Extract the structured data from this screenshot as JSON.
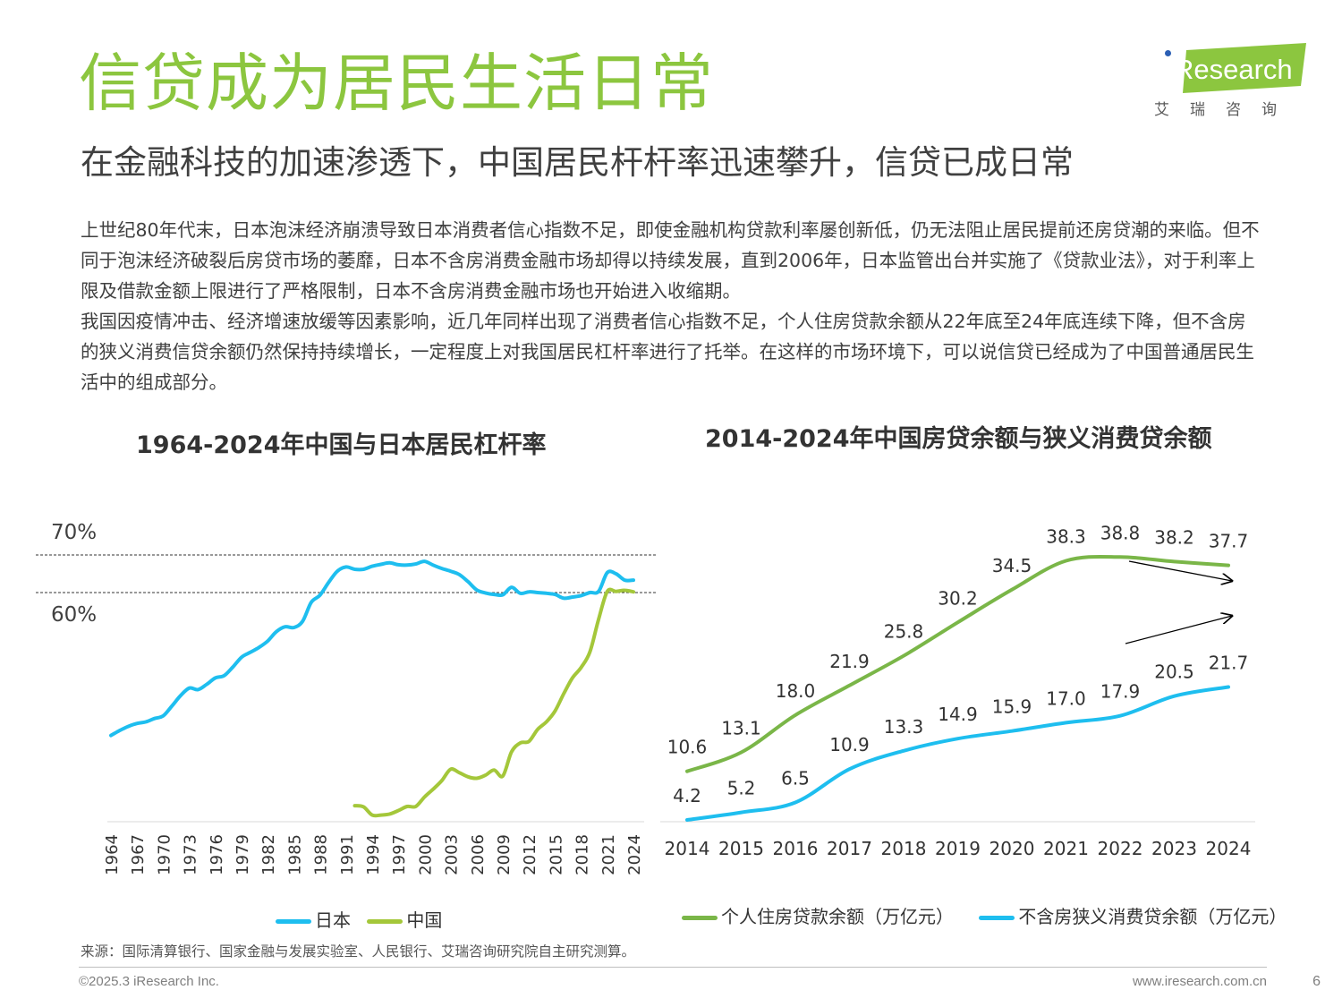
{
  "header": {
    "title": "信贷成为居民生活日常",
    "subtitle": "在金融科技的加速渗透下，中国居民杆杆率迅速攀升，信贷已成日常"
  },
  "logo": {
    "brand_i": "i",
    "brand_text": "Research",
    "sub": "艾瑞咨询",
    "color": "#8cc63f"
  },
  "body": {
    "paragraph1": "上世纪80年代末，日本泡沫经济崩溃导致日本消费者信心指数不足，即使金融机构贷款利率屡创新低，仍无法阻止居民提前还房贷潮的来临。但不同于泡沫经济破裂后房贷市场的萎靡，日本不含房消费金融市场却得以持续发展，直到2006年，日本监管出台并实施了《贷款业法》，对于利率上限及借款金额上限进行了严格限制，日本不含房消费金融市场也开始进入收缩期。",
    "paragraph2": "我国因疫情冲击、经济增速放缓等因素影响，近几年同样出现了消费者信心指数不足，个人住房贷款余额从22年底至24年底连续下降，但不含房的狭义消费信贷余额仍然保持持续增长，一定程度上对我国居民杠杆率进行了托举。在这样的市场环境下，可以说信贷已经成为了中国普通居民生活中的组成部分。"
  },
  "chart_data": [
    {
      "type": "line",
      "title": "1964-2024年中国与日本居民杠杆率",
      "x_tick_labels": [
        "1964",
        "1967",
        "1970",
        "1973",
        "1976",
        "1979",
        "1982",
        "1985",
        "1988",
        "1991",
        "1994",
        "1997",
        "2000",
        "2003",
        "2006",
        "2009",
        "2012",
        "2015",
        "2018",
        "2021",
        "2024"
      ],
      "y_reference_lines": [
        {
          "value": 70,
          "label": "70%"
        },
        {
          "value": 60,
          "label": "60%"
        }
      ],
      "ylim": [
        0,
        75
      ],
      "series": [
        {
          "name": "日本",
          "color": "#1ebeef",
          "x": [
            1964,
            1965,
            1966,
            1967,
            1968,
            1969,
            1970,
            1971,
            1972,
            1973,
            1974,
            1975,
            1976,
            1977,
            1978,
            1979,
            1980,
            1981,
            1982,
            1983,
            1984,
            1985,
            1986,
            1987,
            1988,
            1989,
            1990,
            1991,
            1992,
            1993,
            1994,
            1995,
            1996,
            1997,
            1998,
            1999,
            2000,
            2001,
            2002,
            2003,
            2004,
            2005,
            2006,
            2007,
            2008,
            2009,
            2010,
            2011,
            2012,
            2013,
            2014,
            2015,
            2016,
            2017,
            2018,
            2019,
            2020,
            2021,
            2022,
            2023,
            2024
          ],
          "y": [
            22,
            23.3,
            24.4,
            25.2,
            25.6,
            26.5,
            27.2,
            29.8,
            32.6,
            34.6,
            34.2,
            35.6,
            37.3,
            37.9,
            40.2,
            42.8,
            44.1,
            45.4,
            47.1,
            49.6,
            50.9,
            50.7,
            52.3,
            57.4,
            59.3,
            62.7,
            65.7,
            66.8,
            66.2,
            66.2,
            67.0,
            67.5,
            67.9,
            67.4,
            67.3,
            67.6,
            68.3,
            67.3,
            66.4,
            65.7,
            64.8,
            62.9,
            60.7,
            59.9,
            59.5,
            59.4,
            61.4,
            59.8,
            60.2,
            60.0,
            59.8,
            59.5,
            58.5,
            58.8,
            59.2,
            60.0,
            60.3,
            65.3,
            65.0,
            63.3,
            63.3
          ]
        },
        {
          "name": "中国",
          "color": "#a4c73a",
          "x": [
            1992,
            1993,
            1994,
            1995,
            1996,
            1997,
            1998,
            1999,
            2000,
            2001,
            2002,
            2003,
            2004,
            2005,
            2006,
            2007,
            2008,
            2009,
            2010,
            2011,
            2012,
            2013,
            2014,
            2015,
            2016,
            2017,
            2018,
            2019,
            2020,
            2021,
            2022,
            2023,
            2024
          ],
          "y": [
            3.3,
            3.0,
            0.8,
            0.8,
            1.1,
            2.0,
            3.1,
            3.1,
            5.6,
            7.7,
            10.0,
            13.0,
            12.1,
            11.0,
            10.6,
            11.4,
            12.8,
            11.2,
            17.6,
            20.0,
            20.4,
            23.6,
            25.6,
            28.5,
            33.1,
            37.3,
            40.1,
            44.2,
            52.9,
            60.3,
            60.3,
            60.6,
            60.2
          ]
        }
      ],
      "legend": [
        "日本",
        "中国"
      ],
      "legend_position": "bottom"
    },
    {
      "type": "line",
      "title": "2014-2024年中国房贷余额与狭义消费贷余额",
      "categories": [
        "2014",
        "2015",
        "2016",
        "2017",
        "2018",
        "2019",
        "2020",
        "2021",
        "2022",
        "2023",
        "2024"
      ],
      "ylim": [
        0,
        45
      ],
      "series": [
        {
          "name": "个人住房贷款余额（万亿元）",
          "color": "#7ab648",
          "values": [
            10.6,
            13.1,
            18.0,
            21.9,
            25.8,
            30.2,
            34.5,
            38.3,
            38.8,
            38.2,
            37.7
          ]
        },
        {
          "name": "不含房狭义消费贷余额（万亿元）",
          "color": "#1ebeef",
          "values": [
            4.2,
            5.2,
            6.5,
            10.9,
            13.3,
            14.9,
            15.9,
            17.0,
            17.9,
            20.5,
            21.7
          ]
        }
      ],
      "data_label_text": {
        "house": [
          "10.6",
          "13.1",
          "18.0",
          "21.9",
          "25.8",
          "30.2",
          "34.5",
          "38.3",
          "38.8",
          "38.2",
          "37.7"
        ],
        "consumer": [
          "4.2",
          "5.2",
          "6.5",
          "10.9",
          "13.3",
          "14.9",
          "15.9",
          "17.0",
          "17.9",
          "20.5",
          "21.7"
        ]
      },
      "annotations": [
        "trend-arrow-down",
        "trend-arrow-up"
      ],
      "legend_position": "bottom"
    }
  ],
  "footer": {
    "source": "来源：国际清算银行、国家金融与发展实验室、人民银行、艾瑞咨询研究院自主研究测算。",
    "copyright": "©2025.3 iResearch Inc.",
    "website": "www.iresearch.com.cn",
    "page_number": "6"
  }
}
